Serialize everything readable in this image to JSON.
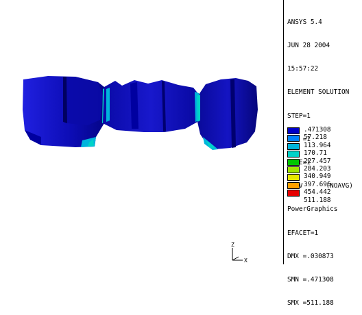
{
  "info": {
    "program": "ANSYS 5.4",
    "date": "JUN 28 2004",
    "time": "15:57:22",
    "plot_type": "ELEMENT SOLUTION",
    "step": "STEP=1",
    "sub": "SUB =1",
    "time_value": "TIME=1",
    "result": "SEQV      (NOAVG)",
    "graphics": "PowerGraphics",
    "efacet": "EFACET=1",
    "dmx": "DMX =.030873",
    "smn": "SMN =.471308",
    "smx": "SMX =511.188"
  },
  "legend": [
    {
      "label": ".471308",
      "color": "#0000c8"
    },
    {
      "label": "57.218",
      "color": "#0082ff"
    },
    {
      "label": "113.964",
      "color": "#00b4dc"
    },
    {
      "label": "170.71",
      "color": "#00d2c8"
    },
    {
      "label": "227.457",
      "color": "#00c800"
    },
    {
      "label": "284.203",
      "color": "#a0e600"
    },
    {
      "label": "340.949",
      "color": "#e6e600"
    },
    {
      "label": "397.696",
      "color": "#ffa000"
    },
    {
      "label": "454.442",
      "color": "#e60000"
    },
    {
      "label": "511.188",
      "color": ""
    }
  ],
  "triad": {
    "z_label": "Z",
    "x_label": "X"
  },
  "colors": {
    "model_dark": "#000068",
    "model_mid": "#00009c",
    "model_light": "#1a1ad2",
    "highlight_cyan": "#00b4dc"
  }
}
